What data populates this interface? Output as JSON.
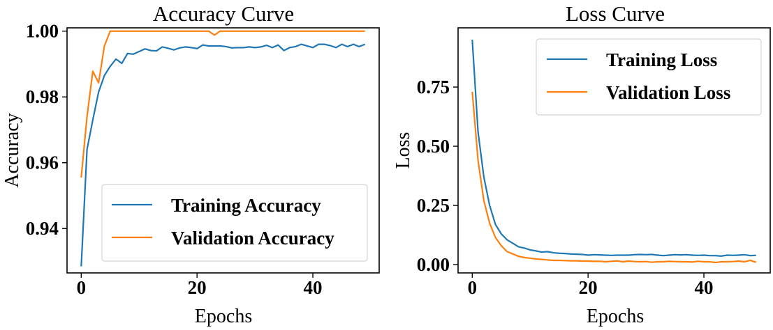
{
  "colors": {
    "training": "#1f77b4",
    "validation": "#ff7f0e"
  },
  "chart_data": [
    {
      "type": "line",
      "title": "Accuracy Curve",
      "xlabel": "Epochs",
      "ylabel": "Accuracy",
      "xlim": [
        -2.45,
        51.45
      ],
      "ylim": [
        0.9265,
        1.001
      ],
      "xticks": [
        0,
        20,
        40
      ],
      "xtick_labels": [
        "0",
        "20",
        "40"
      ],
      "yticks": [
        0.94,
        0.96,
        0.98,
        1.0
      ],
      "ytick_labels": [
        "0.94",
        "0.96",
        "0.98",
        "1.00"
      ],
      "legend_position": "lower-right",
      "x": [
        0,
        1,
        2,
        3,
        4,
        5,
        6,
        7,
        8,
        9,
        10,
        11,
        12,
        13,
        14,
        15,
        16,
        17,
        18,
        19,
        20,
        21,
        22,
        23,
        24,
        25,
        26,
        27,
        28,
        29,
        30,
        31,
        32,
        33,
        34,
        35,
        36,
        37,
        38,
        39,
        40,
        41,
        42,
        43,
        44,
        45,
        46,
        47,
        48,
        49
      ],
      "series": [
        {
          "name": "Training Accuracy",
          "color_key": "training",
          "values": [
            0.9285,
            0.964,
            0.973,
            0.9815,
            0.9865,
            0.9893,
            0.9915,
            0.9902,
            0.9932,
            0.993,
            0.9938,
            0.9946,
            0.9941,
            0.994,
            0.9952,
            0.9948,
            0.9943,
            0.9949,
            0.9952,
            0.995,
            0.9947,
            0.9958,
            0.9955,
            0.9955,
            0.9955,
            0.9953,
            0.9949,
            0.995,
            0.995,
            0.9952,
            0.995,
            0.9952,
            0.9957,
            0.995,
            0.9958,
            0.9941,
            0.995,
            0.9953,
            0.996,
            0.9955,
            0.995,
            0.996,
            0.996,
            0.9956,
            0.995,
            0.996,
            0.9953,
            0.996,
            0.9953,
            0.996
          ]
        },
        {
          "name": "Validation Accuracy",
          "color_key": "validation",
          "values": [
            0.9555,
            0.974,
            0.9878,
            0.9843,
            0.9955,
            1.0,
            1.0,
            1.0,
            1.0,
            1.0,
            1.0,
            1.0,
            1.0,
            1.0,
            1.0,
            1.0,
            1.0,
            1.0,
            1.0,
            1.0,
            1.0,
            1.0,
            1.0,
            0.9988,
            1.0,
            1.0,
            1.0,
            1.0,
            1.0,
            1.0,
            1.0,
            1.0,
            1.0,
            1.0,
            1.0,
            1.0,
            1.0,
            1.0,
            1.0,
            1.0,
            1.0,
            1.0,
            1.0,
            1.0,
            1.0,
            1.0,
            1.0,
            1.0,
            1.0,
            1.0
          ]
        }
      ]
    },
    {
      "type": "line",
      "title": "Loss Curve",
      "xlabel": "Epochs",
      "ylabel": "Loss",
      "xlim": [
        -2.45,
        51.45
      ],
      "ylim": [
        -0.035,
        1.0
      ],
      "xticks": [
        0,
        20,
        40
      ],
      "xtick_labels": [
        "0",
        "20",
        "40"
      ],
      "yticks": [
        0.0,
        0.25,
        0.5,
        0.75
      ],
      "ytick_labels": [
        "0.00",
        "0.25",
        "0.50",
        "0.75"
      ],
      "legend_position": "upper-right",
      "x": [
        0,
        1,
        2,
        3,
        4,
        5,
        6,
        7,
        8,
        9,
        10,
        11,
        12,
        13,
        14,
        15,
        16,
        17,
        18,
        19,
        20,
        21,
        22,
        23,
        24,
        25,
        26,
        27,
        28,
        29,
        30,
        31,
        32,
        33,
        34,
        35,
        36,
        37,
        38,
        39,
        40,
        41,
        42,
        43,
        44,
        45,
        46,
        47,
        48,
        49
      ],
      "series": [
        {
          "name": "Training Loss",
          "color_key": "training",
          "values": [
            0.95,
            0.56,
            0.37,
            0.25,
            0.17,
            0.13,
            0.105,
            0.09,
            0.075,
            0.07,
            0.062,
            0.058,
            0.053,
            0.055,
            0.05,
            0.048,
            0.047,
            0.045,
            0.044,
            0.043,
            0.04,
            0.042,
            0.041,
            0.04,
            0.039,
            0.04,
            0.04,
            0.04,
            0.042,
            0.043,
            0.042,
            0.043,
            0.04,
            0.038,
            0.04,
            0.042,
            0.041,
            0.042,
            0.04,
            0.039,
            0.04,
            0.038,
            0.038,
            0.036,
            0.04,
            0.039,
            0.04,
            0.042,
            0.038,
            0.039
          ]
        },
        {
          "name": "Validation Loss",
          "color_key": "validation",
          "values": [
            0.73,
            0.44,
            0.27,
            0.175,
            0.115,
            0.08,
            0.055,
            0.045,
            0.035,
            0.03,
            0.027,
            0.024,
            0.022,
            0.02,
            0.018,
            0.018,
            0.017,
            0.016,
            0.016,
            0.015,
            0.015,
            0.014,
            0.014,
            0.012,
            0.014,
            0.016,
            0.012,
            0.015,
            0.013,
            0.012,
            0.013,
            0.01,
            0.012,
            0.012,
            0.014,
            0.013,
            0.012,
            0.012,
            0.011,
            0.014,
            0.012,
            0.012,
            0.009,
            0.012,
            0.012,
            0.013,
            0.015,
            0.012,
            0.018,
            0.01
          ]
        }
      ]
    }
  ]
}
